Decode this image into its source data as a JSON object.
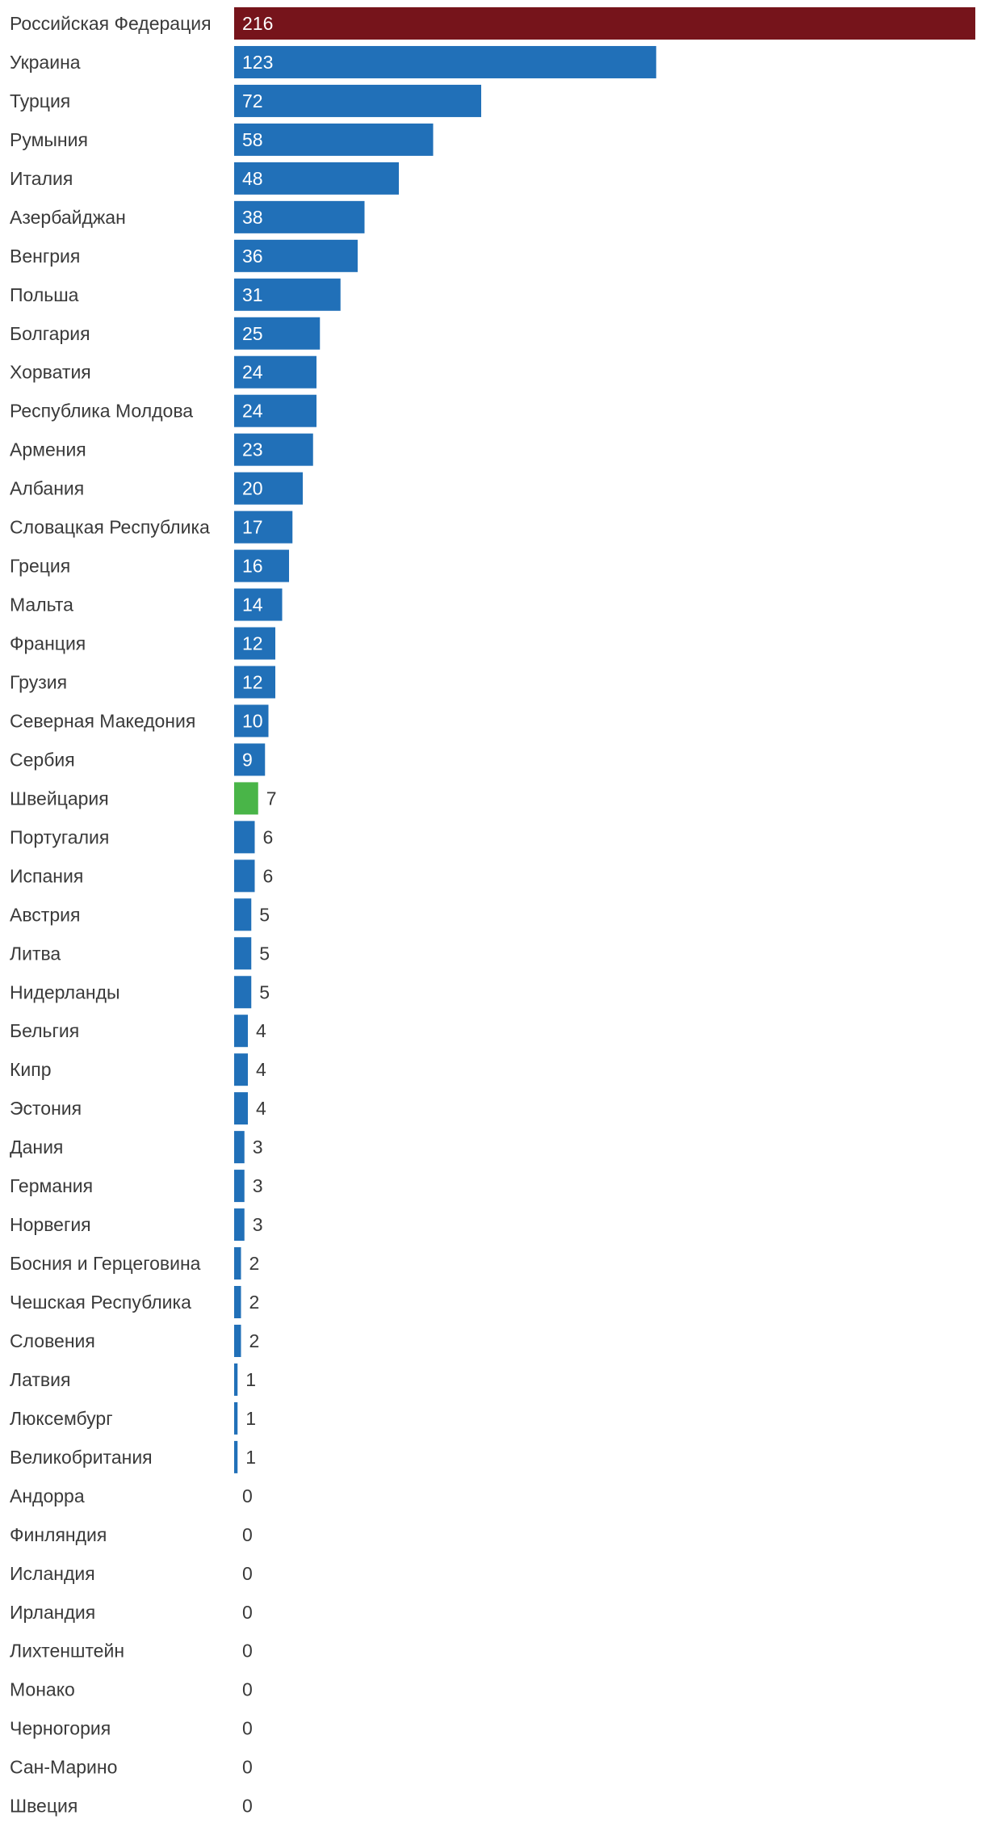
{
  "chart_data": {
    "type": "bar",
    "orientation": "horizontal",
    "title": "",
    "xlabel": "",
    "ylabel": "",
    "xlim": [
      0,
      216
    ],
    "grid": false,
    "legend": "none",
    "colors": {
      "default": "#2170b8",
      "highlight_max": "#76141b",
      "highlight_selected": "#49b548",
      "label_inside": "#ffffff",
      "label_outside": "#3a3a3a",
      "category_text": "#3a3a3a"
    },
    "categories": [
      "Российская Федерация",
      "Украина",
      "Турция",
      "Румыния",
      "Италия",
      "Азербайджан",
      "Венгрия",
      "Польша",
      "Болгария",
      "Хорватия",
      "Республика Молдова",
      "Армения",
      "Албания",
      "Словацкая Республика",
      "Греция",
      "Мальта",
      "Франция",
      "Грузия",
      "Северная Македония",
      "Сербия",
      "Швейцария",
      "Португалия",
      "Испания",
      "Австрия",
      "Литва",
      "Нидерланды",
      "Бельгия",
      "Кипр",
      "Эстония",
      "Дания",
      "Германия",
      "Норвегия",
      "Босния и Герцеговина",
      "Чешская Республика",
      "Словения",
      "Латвия",
      "Люксембург",
      "Великобритания",
      "Андорра",
      "Финляндия",
      "Исландия",
      "Ирландия",
      "Лихтенштейн",
      "Монако",
      "Черногория",
      "Сан-Марино",
      "Швеция"
    ],
    "values": [
      216,
      123,
      72,
      58,
      48,
      38,
      36,
      31,
      25,
      24,
      24,
      23,
      20,
      17,
      16,
      14,
      12,
      12,
      10,
      9,
      7,
      6,
      6,
      5,
      5,
      5,
      4,
      4,
      4,
      3,
      3,
      3,
      2,
      2,
      2,
      1,
      1,
      1,
      0,
      0,
      0,
      0,
      0,
      0,
      0,
      0,
      0
    ],
    "labels": [
      "216",
      "123",
      "72",
      "58",
      "48",
      "38",
      "36",
      "31",
      "25",
      "24",
      "24",
      "23",
      "20",
      "17",
      "16",
      "14",
      "12",
      "12",
      "10",
      "9",
      "7",
      "6",
      "6",
      "5",
      "5",
      "5",
      "4",
      "4",
      "4",
      "3",
      "3",
      "3",
      "2",
      "2",
      "2",
      "1",
      "1",
      "1",
      "0",
      "0",
      "0",
      "0",
      "0",
      "0",
      "0",
      "0",
      "0"
    ],
    "bar_highlights": {
      "Российская Федерация": "highlight_max",
      "Швейцария": "highlight_selected"
    }
  }
}
